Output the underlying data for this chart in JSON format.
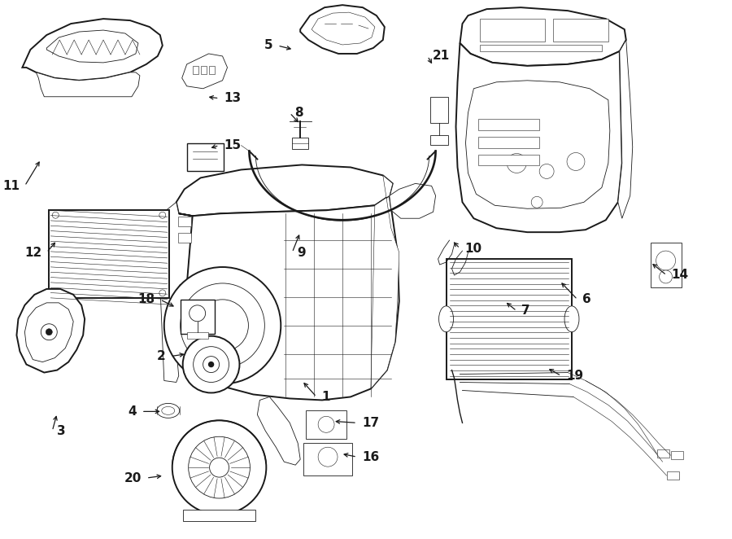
{
  "bg_color": "#ffffff",
  "line_color": "#1a1a1a",
  "fig_width": 9.0,
  "fig_height": 6.62,
  "dpi": 100,
  "font_size": 11,
  "font_weight": "bold",
  "lw_main": 1.4,
  "lw_med": 1.0,
  "lw_thin": 0.6,
  "lw_detail": 0.4,
  "label_positions": {
    "1": [
      388,
      488,
      370,
      468,
      "left"
    ],
    "2": [
      208,
      438,
      228,
      435,
      "right"
    ],
    "3": [
      62,
      530,
      68,
      508,
      "left"
    ],
    "4": [
      172,
      506,
      198,
      506,
      "right"
    ],
    "5": [
      340,
      55,
      360,
      60,
      "right"
    ],
    "6": [
      710,
      368,
      688,
      345,
      "left"
    ],
    "7": [
      635,
      382,
      620,
      370,
      "left"
    ],
    "8": [
      355,
      138,
      368,
      152,
      "left"
    ],
    "9": [
      358,
      310,
      368,
      285,
      "left"
    ],
    "10": [
      565,
      305,
      555,
      295,
      "left"
    ],
    "11": [
      28,
      228,
      48,
      195,
      "right"
    ],
    "12": [
      55,
      310,
      68,
      295,
      "right"
    ],
    "13": [
      268,
      120,
      252,
      118,
      "left"
    ],
    "14": [
      820,
      338,
      800,
      322,
      "left"
    ],
    "15": [
      268,
      178,
      255,
      182,
      "left"
    ],
    "16": [
      438,
      562,
      418,
      558,
      "left"
    ],
    "17": [
      438,
      520,
      408,
      518,
      "left"
    ],
    "18": [
      195,
      368,
      215,
      378,
      "right"
    ],
    "19": [
      690,
      462,
      672,
      452,
      "left"
    ],
    "20": [
      178,
      588,
      200,
      585,
      "right"
    ],
    "21": [
      525,
      68,
      532,
      80,
      "left"
    ]
  }
}
